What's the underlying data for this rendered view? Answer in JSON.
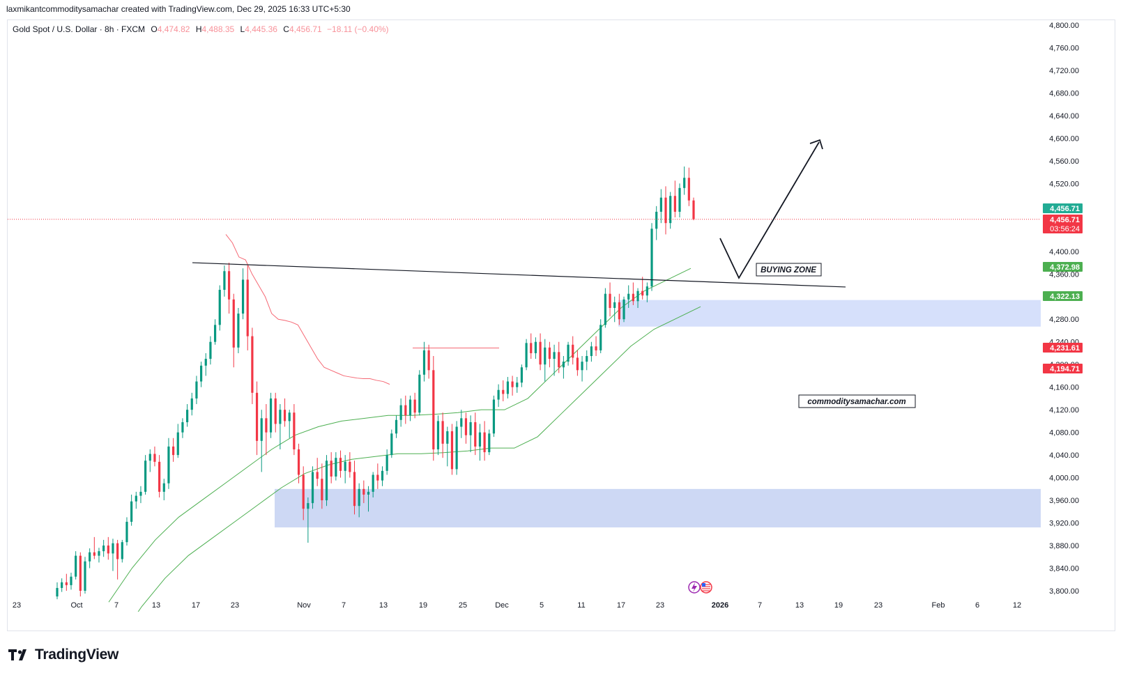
{
  "header": {
    "meta": "laxmikantcommoditysamachar created with TradingView.com, Dec 29, 2025 16:33 UTC+5:30"
  },
  "legend": {
    "symbol": "Gold Spot / U.S. Dollar · 8h · FXCM",
    "open_label": "O",
    "open": "4,474.82",
    "high_label": "H",
    "high": "4,488.35",
    "low_label": "L",
    "low": "4,445.36",
    "close_label": "C",
    "close": "4,456.71",
    "change": "−18.11 (−0.40%)"
  },
  "brand": {
    "name": "TradingView",
    "icon": "tradingview-logo-icon"
  },
  "colors": {
    "up": "#089981",
    "down": "#f23645",
    "zone": "#cfd9f5",
    "last_price_tag": "#f23645",
    "green_tag": "#4caf50",
    "teal_tag": "#22ab94"
  },
  "chart_data": {
    "type": "candlestick",
    "symbol": "XAUUSD",
    "timeframe": "8h",
    "ylim": [
      3780,
      4820
    ],
    "y_ticks": [
      "4,800.00",
      "4,760.00",
      "4,720.00",
      "4,680.00",
      "4,640.00",
      "4,600.00",
      "4,560.00",
      "4,520.00",
      "4,480.00",
      "4,440.00",
      "4,400.00",
      "4,360.00",
      "4,320.00",
      "4,280.00",
      "4,240.00",
      "4,200.00",
      "4,160.00",
      "4,120.00",
      "4,080.00",
      "4,040.00",
      "4,000.00",
      "3,960.00",
      "3,920.00",
      "3,880.00",
      "3,840.00",
      "3,800.00"
    ],
    "x_ticks": [
      "23",
      "Oct",
      "7",
      "13",
      "17",
      "23",
      "Nov",
      "7",
      "13",
      "19",
      "25",
      "Dec",
      "5",
      "11",
      "17",
      "23",
      "2026",
      "7",
      "13",
      "19",
      "23",
      "Feb",
      "6",
      "12"
    ],
    "price_labels": [
      {
        "text": "4,456.71",
        "value": 4456.71,
        "kind": "teal"
      },
      {
        "text": "4,456.71",
        "value": 4456.71,
        "kind": "last",
        "countdown": "03:56:24"
      },
      {
        "text": "4,372.98",
        "value": 4372.98,
        "kind": "green"
      },
      {
        "text": "4,322.13",
        "value": 4322.13,
        "kind": "green"
      },
      {
        "text": "4,231.61",
        "value": 4231.61,
        "kind": "red"
      },
      {
        "text": "4,194.71",
        "value": 4194.71,
        "kind": "red"
      }
    ],
    "last_price": 4456.71,
    "trendline": {
      "from": [
        "Oct 16",
        4380
      ],
      "to": [
        "Jan 21",
        4337
      ]
    },
    "zones": [
      {
        "label": "BUYING ZONE",
        "from": "Dec 13",
        "y_low": 4267,
        "y_high": 4314
      },
      {
        "label": "",
        "from": "Oct 27",
        "y_low": 3912,
        "y_high": 3980
      }
    ],
    "annotations": {
      "buying_zone": "BUYING ZONE",
      "watermark": "commoditysamachar.com"
    },
    "candles": [
      [
        3790,
        3815,
        3785,
        3805
      ],
      [
        3805,
        3822,
        3798,
        3815
      ],
      [
        3815,
        3830,
        3800,
        3810
      ],
      [
        3810,
        3832,
        3802,
        3825
      ],
      [
        3825,
        3870,
        3820,
        3862
      ],
      [
        3862,
        3868,
        3790,
        3800
      ],
      [
        3800,
        3860,
        3795,
        3852
      ],
      [
        3852,
        3875,
        3840,
        3868
      ],
      [
        3868,
        3895,
        3856,
        3862
      ],
      [
        3862,
        3876,
        3850,
        3870
      ],
      [
        3870,
        3890,
        3860,
        3880
      ],
      [
        3880,
        3895,
        3855,
        3866
      ],
      [
        3866,
        3892,
        3835,
        3884
      ],
      [
        3884,
        3890,
        3820,
        3856
      ],
      [
        3856,
        3890,
        3850,
        3886
      ],
      [
        3886,
        3930,
        3880,
        3922
      ],
      [
        3922,
        3970,
        3915,
        3958
      ],
      [
        3958,
        3975,
        3945,
        3968
      ],
      [
        3968,
        3985,
        3955,
        3975
      ],
      [
        3975,
        4040,
        3970,
        4030
      ],
      [
        4030,
        4050,
        4010,
        4042
      ],
      [
        4042,
        4055,
        4020,
        4028
      ],
      [
        4028,
        4040,
        3965,
        3975
      ],
      [
        3975,
        3998,
        3960,
        3990
      ],
      [
        3990,
        4070,
        3980,
        4055
      ],
      [
        4055,
        4070,
        4028,
        4040
      ],
      [
        4040,
        4095,
        4035,
        4080
      ],
      [
        4080,
        4105,
        4070,
        4098
      ],
      [
        4098,
        4130,
        4090,
        4120
      ],
      [
        4120,
        4150,
        4110,
        4140
      ],
      [
        4140,
        4180,
        4130,
        4170
      ],
      [
        4170,
        4205,
        4160,
        4198
      ],
      [
        4198,
        4220,
        4180,
        4210
      ],
      [
        4210,
        4250,
        4200,
        4240
      ],
      [
        4240,
        4280,
        4235,
        4270
      ],
      [
        4270,
        4340,
        4260,
        4332
      ],
      [
        4332,
        4375,
        4320,
        4365
      ],
      [
        4365,
        4380,
        4290,
        4315
      ],
      [
        4315,
        4325,
        4195,
        4230
      ],
      [
        4230,
        4300,
        4220,
        4290
      ],
      [
        4290,
        4370,
        4280,
        4350
      ],
      [
        4350,
        4375,
        4225,
        4250
      ],
      [
        4250,
        4265,
        4130,
        4150
      ],
      [
        4150,
        4170,
        4040,
        4065
      ],
      [
        4065,
        4120,
        4010,
        4105
      ],
      [
        4105,
        4130,
        4040,
        4080
      ],
      [
        4080,
        4150,
        4070,
        4140
      ],
      [
        4140,
        4150,
        4080,
        4095
      ],
      [
        4095,
        4130,
        4050,
        4120
      ],
      [
        4120,
        4140,
        4090,
        4100
      ],
      [
        4100,
        4120,
        4070,
        4115
      ],
      [
        4115,
        4130,
        4040,
        4050
      ],
      [
        4050,
        4060,
        3990,
        4005
      ],
      [
        4005,
        4020,
        3925,
        3945
      ],
      [
        3945,
        3965,
        3885,
        3955
      ],
      [
        3955,
        4020,
        3945,
        4010
      ],
      [
        4010,
        4035,
        3985,
        3998
      ],
      [
        3998,
        4025,
        3945,
        3960
      ],
      [
        3960,
        4040,
        3950,
        4030
      ],
      [
        4030,
        4045,
        3990,
        4002
      ],
      [
        4002,
        4045,
        3995,
        4035
      ],
      [
        4035,
        4048,
        4000,
        4012
      ],
      [
        4012,
        4040,
        3990,
        4028
      ],
      [
        4028,
        4045,
        4000,
        4010
      ],
      [
        4010,
        4030,
        3935,
        3950
      ],
      [
        3950,
        3990,
        3930,
        3980
      ],
      [
        3980,
        3995,
        3955,
        3970
      ],
      [
        3970,
        3985,
        3940,
        3975
      ],
      [
        3975,
        4010,
        3965,
        4005
      ],
      [
        4005,
        4025,
        3980,
        3995
      ],
      [
        3995,
        4020,
        3985,
        4012
      ],
      [
        4012,
        4050,
        4005,
        4040
      ],
      [
        4040,
        4085,
        4035,
        4078
      ],
      [
        4078,
        4110,
        4070,
        4102
      ],
      [
        4102,
        4140,
        4090,
        4128
      ],
      [
        4128,
        4145,
        4095,
        4110
      ],
      [
        4110,
        4145,
        4100,
        4138
      ],
      [
        4138,
        4150,
        4105,
        4115
      ],
      [
        4115,
        4190,
        4110,
        4182
      ],
      [
        4182,
        4240,
        4170,
        4225
      ],
      [
        4225,
        4235,
        4175,
        4190
      ],
      [
        4190,
        4215,
        4030,
        4050
      ],
      [
        4050,
        4110,
        4040,
        4100
      ],
      [
        4100,
        4115,
        4035,
        4060
      ],
      [
        4060,
        4090,
        4020,
        4082
      ],
      [
        4082,
        4095,
        4005,
        4015
      ],
      [
        4015,
        4100,
        4005,
        4090
      ],
      [
        4090,
        4120,
        4070,
        4105
      ],
      [
        4105,
        4115,
        4060,
        4075
      ],
      [
        4075,
        4110,
        4045,
        4098
      ],
      [
        4098,
        4115,
        4040,
        4055
      ],
      [
        4055,
        4095,
        4030,
        4080
      ],
      [
        4080,
        4100,
        4030,
        4045
      ],
      [
        4045,
        4085,
        4040,
        4078
      ],
      [
        4078,
        4145,
        4072,
        4138
      ],
      [
        4138,
        4165,
        4125,
        4155
      ],
      [
        4155,
        4172,
        4135,
        4148
      ],
      [
        4148,
        4178,
        4140,
        4170
      ],
      [
        4170,
        4180,
        4145,
        4160
      ],
      [
        4160,
        4178,
        4150,
        4168
      ],
      [
        4168,
        4200,
        4160,
        4195
      ],
      [
        4195,
        4245,
        4190,
        4238
      ],
      [
        4238,
        4255,
        4210,
        4220
      ],
      [
        4220,
        4248,
        4210,
        4240
      ],
      [
        4240,
        4255,
        4190,
        4200
      ],
      [
        4200,
        4245,
        4170,
        4230
      ],
      [
        4230,
        4240,
        4195,
        4210
      ],
      [
        4210,
        4235,
        4180,
        4222
      ],
      [
        4222,
        4240,
        4185,
        4195
      ],
      [
        4195,
        4215,
        4175,
        4205
      ],
      [
        4205,
        4240,
        4198,
        4235
      ],
      [
        4235,
        4250,
        4200,
        4212
      ],
      [
        4212,
        4225,
        4180,
        4190
      ],
      [
        4190,
        4215,
        4170,
        4205
      ],
      [
        4205,
        4225,
        4190,
        4215
      ],
      [
        4215,
        4240,
        4205,
        4232
      ],
      [
        4232,
        4250,
        4215,
        4225
      ],
      [
        4225,
        4280,
        4220,
        4270
      ],
      [
        4270,
        4335,
        4265,
        4325
      ],
      [
        4325,
        4345,
        4285,
        4300
      ],
      [
        4300,
        4320,
        4275,
        4310
      ],
      [
        4310,
        4325,
        4270,
        4280
      ],
      [
        4280,
        4320,
        4275,
        4315
      ],
      [
        4315,
        4340,
        4300,
        4325
      ],
      [
        4325,
        4345,
        4305,
        4312
      ],
      [
        4312,
        4335,
        4300,
        4330
      ],
      [
        4330,
        4355,
        4315,
        4322
      ],
      [
        4322,
        4345,
        4310,
        4338
      ],
      [
        4338,
        4450,
        4330,
        4440
      ],
      [
        4440,
        4480,
        4420,
        4470
      ],
      [
        4470,
        4510,
        4450,
        4495
      ],
      [
        4495,
        4515,
        4430,
        4450
      ],
      [
        4450,
        4505,
        4440,
        4498
      ],
      [
        4498,
        4525,
        4460,
        4470
      ],
      [
        4470,
        4520,
        4460,
        4512
      ],
      [
        4512,
        4550,
        4500,
        4530
      ],
      [
        4530,
        4548,
        4480,
        4490
      ],
      [
        4490,
        4495,
        4455,
        4457
      ]
    ],
    "supertrend": {
      "resistance": [
        4430,
        4415,
        4390,
        4385,
        4360,
        4340,
        4320,
        4290,
        4280,
        4278,
        4275,
        4270,
        4250,
        4230,
        4210,
        4195,
        4190,
        4185,
        4180,
        4178,
        4176,
        4175,
        4175,
        4172,
        4170,
        4165
      ],
      "support": [
        3780,
        3840,
        3890,
        3930,
        3960,
        3990,
        4020,
        4050,
        4075,
        4090,
        4100,
        4105,
        4110,
        4110,
        4112,
        4115,
        4120,
        4120,
        4140,
        4180,
        4220,
        4260,
        4300,
        4330,
        4350,
        4370
      ]
    }
  }
}
